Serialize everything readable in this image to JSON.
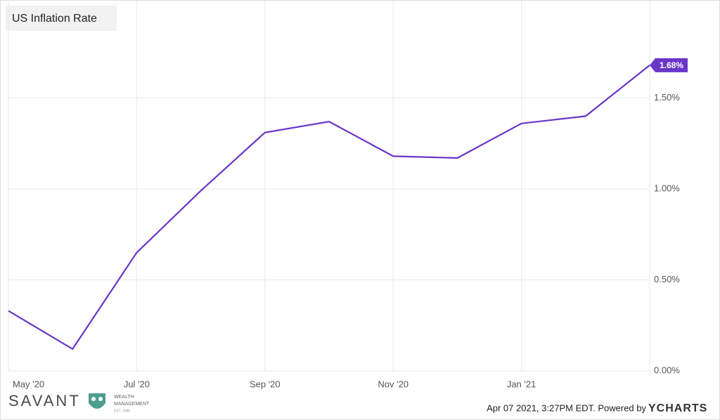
{
  "chart_data": {
    "type": "line",
    "title": "US Inflation Rate",
    "categories": [
      "May '20",
      null,
      "Jul '20",
      null,
      "Sep '20",
      null,
      "Nov '20",
      null,
      "Jan '21",
      null,
      null
    ],
    "series": [
      {
        "name": "US Inflation Rate",
        "color": "#6a35c9",
        "values": [
          0.33,
          0.12,
          0.65,
          0.99,
          1.31,
          1.37,
          1.18,
          1.17,
          1.36,
          1.4,
          1.68
        ],
        "value_labels": [
          null,
          null,
          null,
          null,
          null,
          null,
          null,
          null,
          null,
          null,
          "1.68%"
        ]
      }
    ],
    "ylim": [
      0,
      2
    ],
    "yticks": [
      {
        "value": 0,
        "label": "0.00%"
      },
      {
        "value": 0.5,
        "label": "0.50%"
      },
      {
        "value": 1,
        "label": "1.00%"
      },
      {
        "value": 1.5,
        "label": "1.50%"
      }
    ],
    "grid": true
  },
  "footer": {
    "brand": "SAVANT",
    "brand_line1": "WEALTH",
    "brand_line2": "MANAGEMENT",
    "brand_est": "EST. 1986",
    "timestamp": "Apr 07 2021, 3:27PM EDT. Powered by",
    "provider": "YCHARTS"
  }
}
